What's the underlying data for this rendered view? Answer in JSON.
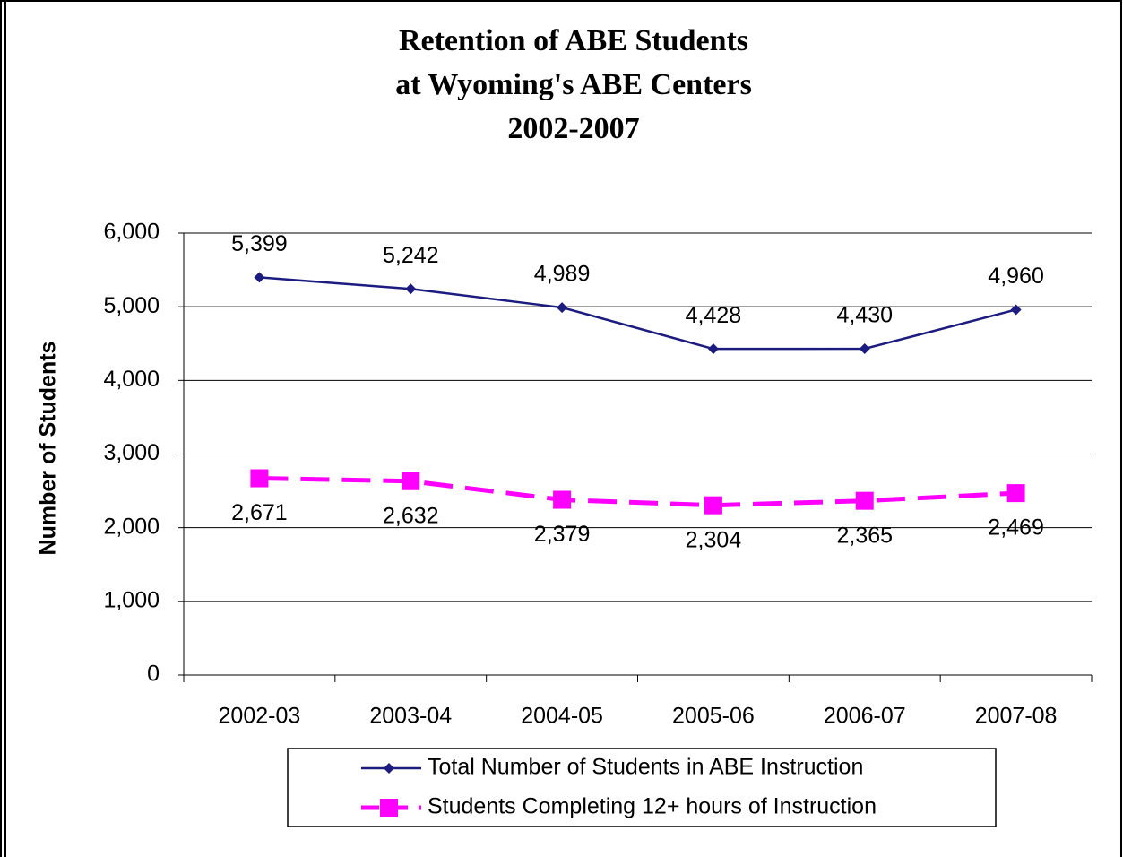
{
  "chart_data": {
    "type": "line",
    "title": [
      "Retention of ABE Students",
      "at Wyoming's ABE Centers",
      "2002-2007"
    ],
    "y_label": "Number of Students",
    "categories": [
      "2002-03",
      "2003-04",
      "2004-05",
      "2005-06",
      "2006-07",
      "2007-08"
    ],
    "series": [
      {
        "name": "Total Number of Students in ABE Instruction",
        "color": "#1c1c80",
        "marker": "diamond",
        "dash": false,
        "values": [
          5399,
          5242,
          4989,
          4428,
          4430,
          4960
        ],
        "value_labels": [
          "5,399",
          "5,242",
          "4,989",
          "4,428",
          "4,430",
          "4,960"
        ]
      },
      {
        "name": "Students Completing 12+ hours of Instruction",
        "color": "#ff00ff",
        "marker": "square",
        "dash": true,
        "values": [
          2671,
          2632,
          2379,
          2304,
          2365,
          2469
        ],
        "value_labels": [
          "2,671",
          "2,632",
          "2,379",
          "2,304",
          "2,365",
          "2,469"
        ]
      }
    ],
    "ylim": [
      0,
      6000
    ],
    "yticks": [
      0,
      {
        "value": 1000,
        "label": "1,000"
      },
      {
        "value": 2000,
        "label": "2,000"
      },
      {
        "value": 3000,
        "label": "3,000"
      },
      {
        "value": 4000,
        "label": "4,000"
      },
      {
        "value": 5000,
        "label": "5,000"
      },
      {
        "value": 6000,
        "label": "6,000"
      }
    ],
    "grid": true,
    "legend": "bottom"
  }
}
